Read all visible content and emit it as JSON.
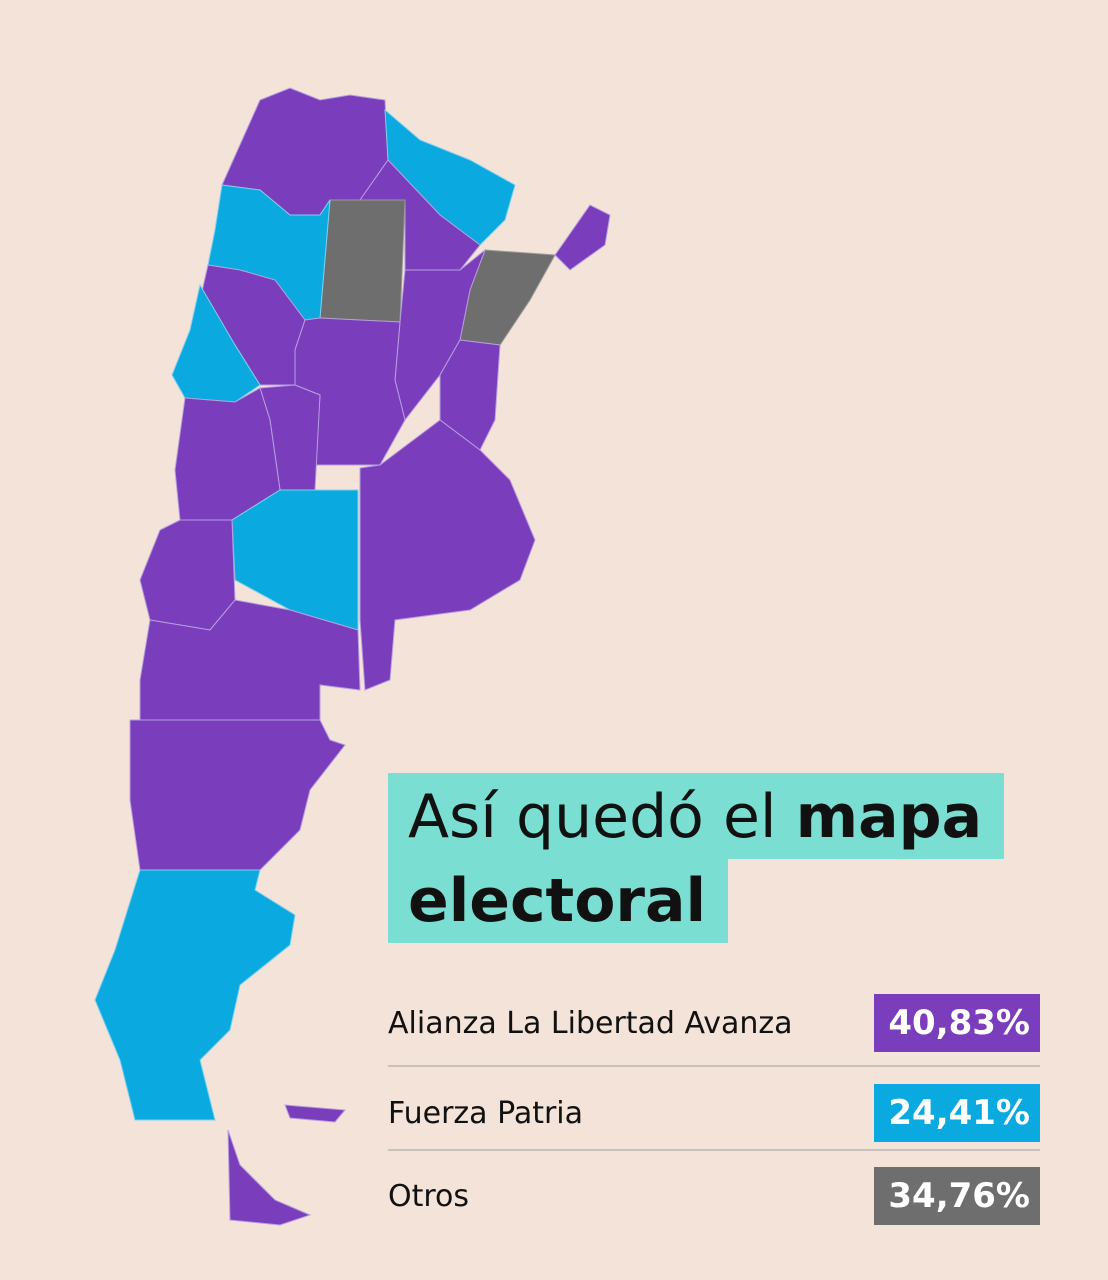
{
  "title": {
    "normal": "Así quedó el",
    "bold": "mapa",
    "bold2": "electoral"
  },
  "legend": {
    "rows": [
      {
        "label": "Alianza La Libertad Avanza",
        "value": "40,83%"
      },
      {
        "label": "Fuerza Patria",
        "value": "24,41%"
      },
      {
        "label": "Otros",
        "value": "34,76%"
      }
    ]
  }
}
